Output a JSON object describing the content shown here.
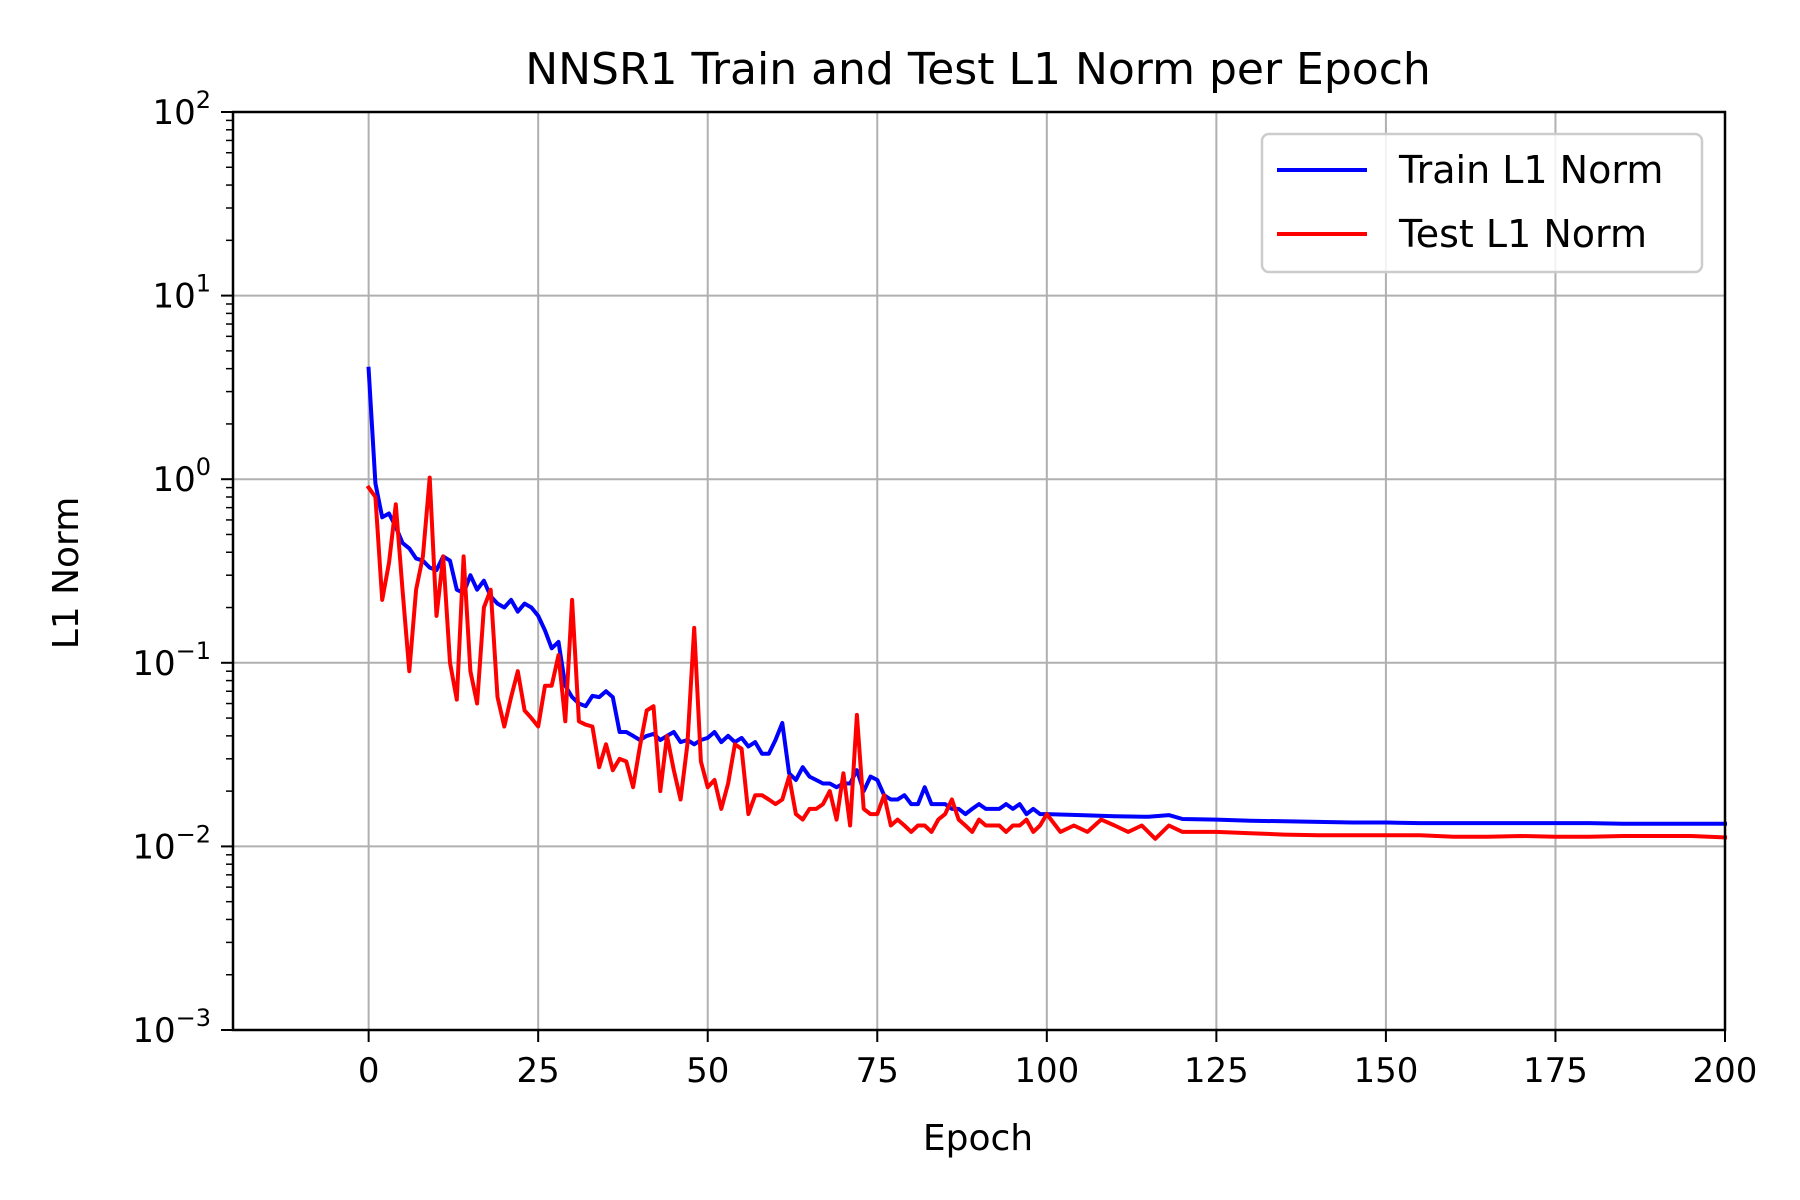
{
  "chart_data": {
    "type": "line",
    "title": "NNSR1 Train and Test L1 Norm per Epoch",
    "xlabel": "Epoch",
    "ylabel": "L1 Norm",
    "xlim": [
      -20,
      200
    ],
    "ylim": [
      0.001,
      100
    ],
    "yscale": "log",
    "grid": true,
    "legend_position": "top-right",
    "x_ticks": [
      {
        "value": 0,
        "label": "0"
      },
      {
        "value": 25,
        "label": "25"
      },
      {
        "value": 50,
        "label": "50"
      },
      {
        "value": 75,
        "label": "75"
      },
      {
        "value": 100,
        "label": "100"
      },
      {
        "value": 125,
        "label": "125"
      },
      {
        "value": 150,
        "label": "150"
      },
      {
        "value": 175,
        "label": "175"
      },
      {
        "value": 200,
        "label": "200"
      }
    ],
    "y_ticks": [
      {
        "value": 0.001,
        "base": "10",
        "exp": "−3"
      },
      {
        "value": 0.01,
        "base": "10",
        "exp": "−2"
      },
      {
        "value": 0.1,
        "base": "10",
        "exp": "−1"
      },
      {
        "value": 1,
        "base": "10",
        "exp": "0"
      },
      {
        "value": 10,
        "base": "10",
        "exp": "1"
      },
      {
        "value": 100,
        "base": "10",
        "exp": "2"
      }
    ],
    "series": [
      {
        "name": "Train L1 Norm",
        "color": "#0000ff",
        "x": [
          0,
          1,
          2,
          3,
          4,
          5,
          6,
          7,
          8,
          9,
          10,
          11,
          12,
          13,
          14,
          15,
          16,
          17,
          18,
          19,
          20,
          21,
          22,
          23,
          24,
          25,
          26,
          27,
          28,
          29,
          30,
          31,
          32,
          33,
          34,
          35,
          36,
          37,
          38,
          39,
          40,
          41,
          42,
          43,
          44,
          45,
          46,
          47,
          48,
          49,
          50,
          51,
          52,
          53,
          54,
          55,
          56,
          57,
          58,
          59,
          60,
          61,
          62,
          63,
          64,
          65,
          66,
          67,
          68,
          69,
          70,
          71,
          72,
          73,
          74,
          75,
          76,
          77,
          78,
          79,
          80,
          81,
          82,
          83,
          84,
          85,
          86,
          87,
          88,
          89,
          90,
          91,
          92,
          93,
          94,
          95,
          96,
          97,
          98,
          99,
          100,
          105,
          110,
          115,
          118,
          120,
          125,
          130,
          135,
          140,
          145,
          150,
          155,
          160,
          165,
          170,
          175,
          180,
          185,
          190,
          195,
          200
        ],
        "y": [
          4.0,
          0.95,
          0.62,
          0.65,
          0.55,
          0.45,
          0.42,
          0.37,
          0.36,
          0.33,
          0.32,
          0.38,
          0.36,
          0.25,
          0.24,
          0.3,
          0.25,
          0.28,
          0.23,
          0.21,
          0.2,
          0.22,
          0.19,
          0.21,
          0.2,
          0.18,
          0.15,
          0.12,
          0.13,
          0.075,
          0.065,
          0.06,
          0.058,
          0.066,
          0.065,
          0.07,
          0.065,
          0.042,
          0.042,
          0.04,
          0.038,
          0.04,
          0.041,
          0.038,
          0.04,
          0.042,
          0.037,
          0.038,
          0.036,
          0.038,
          0.039,
          0.042,
          0.037,
          0.04,
          0.037,
          0.039,
          0.035,
          0.037,
          0.032,
          0.032,
          0.038,
          0.047,
          0.025,
          0.023,
          0.027,
          0.024,
          0.023,
          0.022,
          0.022,
          0.021,
          0.022,
          0.022,
          0.026,
          0.02,
          0.024,
          0.023,
          0.019,
          0.018,
          0.018,
          0.019,
          0.017,
          0.017,
          0.021,
          0.017,
          0.017,
          0.017,
          0.016,
          0.016,
          0.015,
          0.016,
          0.017,
          0.016,
          0.016,
          0.016,
          0.017,
          0.016,
          0.017,
          0.015,
          0.016,
          0.015,
          0.015,
          0.0148,
          0.0146,
          0.0145,
          0.0148,
          0.0141,
          0.014,
          0.0138,
          0.0137,
          0.0136,
          0.0135,
          0.0135,
          0.0134,
          0.0134,
          0.0134,
          0.0134,
          0.0134,
          0.0134,
          0.0133,
          0.0133,
          0.0133,
          0.0133
        ]
      },
      {
        "name": "Test L1 Norm",
        "color": "#ff0000",
        "x": [
          0,
          1,
          2,
          3,
          4,
          5,
          6,
          7,
          8,
          9,
          10,
          11,
          12,
          13,
          14,
          15,
          16,
          17,
          18,
          19,
          20,
          21,
          22,
          23,
          24,
          25,
          26,
          27,
          28,
          29,
          30,
          31,
          32,
          33,
          34,
          35,
          36,
          37,
          38,
          39,
          40,
          41,
          42,
          43,
          44,
          45,
          46,
          47,
          48,
          49,
          50,
          51,
          52,
          53,
          54,
          55,
          56,
          57,
          58,
          59,
          60,
          61,
          62,
          63,
          64,
          65,
          66,
          67,
          68,
          69,
          70,
          71,
          72,
          73,
          74,
          75,
          76,
          77,
          78,
          79,
          80,
          81,
          82,
          83,
          84,
          85,
          86,
          87,
          88,
          89,
          90,
          91,
          92,
          93,
          94,
          95,
          96,
          97,
          98,
          99,
          100,
          102,
          104,
          106,
          108,
          110,
          112,
          114,
          116,
          118,
          120,
          125,
          130,
          135,
          140,
          145,
          150,
          155,
          160,
          165,
          170,
          175,
          180,
          185,
          190,
          195,
          200
        ],
        "y": [
          0.9,
          0.8,
          0.22,
          0.35,
          0.73,
          0.25,
          0.09,
          0.25,
          0.38,
          1.02,
          0.18,
          0.38,
          0.1,
          0.063,
          0.38,
          0.09,
          0.06,
          0.2,
          0.25,
          0.065,
          0.045,
          0.065,
          0.09,
          0.055,
          0.05,
          0.045,
          0.075,
          0.075,
          0.11,
          0.048,
          0.22,
          0.048,
          0.046,
          0.045,
          0.027,
          0.036,
          0.026,
          0.03,
          0.029,
          0.021,
          0.035,
          0.055,
          0.058,
          0.02,
          0.04,
          0.026,
          0.018,
          0.036,
          0.155,
          0.029,
          0.021,
          0.023,
          0.016,
          0.022,
          0.036,
          0.034,
          0.015,
          0.019,
          0.019,
          0.018,
          0.017,
          0.018,
          0.024,
          0.015,
          0.014,
          0.016,
          0.016,
          0.017,
          0.02,
          0.014,
          0.025,
          0.013,
          0.052,
          0.016,
          0.015,
          0.015,
          0.019,
          0.013,
          0.014,
          0.013,
          0.012,
          0.013,
          0.013,
          0.012,
          0.014,
          0.015,
          0.018,
          0.014,
          0.013,
          0.012,
          0.014,
          0.013,
          0.013,
          0.013,
          0.012,
          0.013,
          0.013,
          0.014,
          0.012,
          0.013,
          0.015,
          0.012,
          0.013,
          0.012,
          0.014,
          0.013,
          0.012,
          0.013,
          0.011,
          0.013,
          0.012,
          0.012,
          0.0118,
          0.0116,
          0.0115,
          0.0115,
          0.0115,
          0.0115,
          0.0113,
          0.0113,
          0.0114,
          0.0113,
          0.0113,
          0.0114,
          0.0114,
          0.0114,
          0.0112
        ]
      }
    ]
  }
}
